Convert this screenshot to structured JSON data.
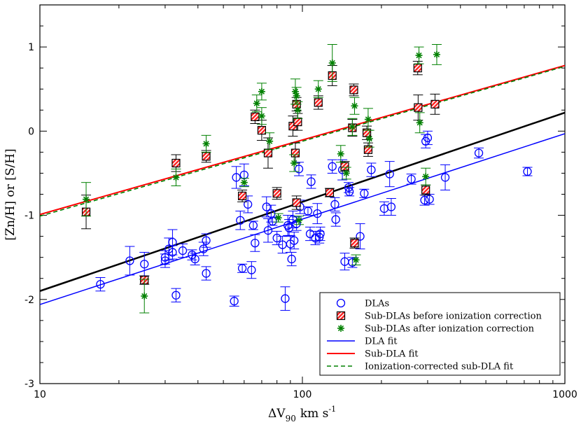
{
  "chart_data": {
    "type": "scatter",
    "title": "",
    "xlabel_main": "ΔV",
    "xlabel_sub": "90",
    "xlabel_unit": "km s",
    "xlabel_sup": "-1",
    "ylabel": "[Zn/H] or [S/H]",
    "xscale": "log",
    "xlim": [
      10,
      1000
    ],
    "ylim": [
      -3,
      1.5
    ],
    "x_ticks": [
      10,
      100,
      1000
    ],
    "x_tick_labels": [
      "10",
      "100",
      "1000"
    ],
    "y_ticks": [
      -3,
      -2,
      -1,
      0,
      1
    ],
    "y_tick_labels": [
      "-3",
      "-2",
      "-1",
      "0",
      "1"
    ],
    "legend_position": "bottom-right",
    "colors": {
      "dla": "#0000ff",
      "subdla_before_fill": "#ff2020",
      "subdla_before_stripe": "#ffffff",
      "subdla_before_err": "#000000",
      "subdla_after": "#008000",
      "dla_fit": "#0000ff",
      "subdla_fit": "#ff0000",
      "ion_fit": "#008000",
      "overall_fit": "#000000"
    },
    "legend": [
      {
        "key": "dla",
        "label": "DLAs"
      },
      {
        "key": "before",
        "label": "Sub-DLAs before ionization correction"
      },
      {
        "key": "after",
        "label": "Sub-DLAs after ionization correction"
      },
      {
        "key": "dla_fit",
        "label": "DLA fit"
      },
      {
        "key": "subdla_fit",
        "label": "Sub-DLA fit"
      },
      {
        "key": "ion_fit",
        "label": "Ionization-corrected sub-DLA fit"
      }
    ],
    "fits": {
      "dla_fit": {
        "x": [
          10,
          1000
        ],
        "y": [
          -2.06,
          -0.03
        ]
      },
      "subdla_fit": {
        "x": [
          10,
          1000
        ],
        "y": [
          -0.99,
          0.78
        ]
      },
      "ion_fit": {
        "x": [
          10,
          1000
        ],
        "y": [
          -1.01,
          0.77
        ]
      },
      "overall_fit": {
        "x": [
          10,
          1000
        ],
        "y": [
          -1.9,
          0.22
        ]
      }
    },
    "series": [
      {
        "name": "DLAs",
        "points": [
          {
            "x": 17,
            "y": -1.82,
            "e": 0.08
          },
          {
            "x": 22,
            "y": -1.54,
            "e": 0.17
          },
          {
            "x": 25,
            "y": -1.58,
            "e": 0.14
          },
          {
            "x": 30,
            "y": -1.5,
            "e": 0.08
          },
          {
            "x": 30,
            "y": -1.54,
            "e": 0.08
          },
          {
            "x": 31,
            "y": -1.4,
            "e": 0.13
          },
          {
            "x": 32,
            "y": -1.32,
            "e": 0.15
          },
          {
            "x": 32,
            "y": -1.44,
            "e": 0.08
          },
          {
            "x": 33,
            "y": -1.95,
            "e": 0.08
          },
          {
            "x": 35,
            "y": -1.42,
            "e": 0.08
          },
          {
            "x": 38,
            "y": -1.47,
            "e": 0.06
          },
          {
            "x": 39,
            "y": -1.52,
            "e": 0.07
          },
          {
            "x": 42,
            "y": -1.4,
            "e": 0.08
          },
          {
            "x": 43,
            "y": -1.3,
            "e": 0.08
          },
          {
            "x": 43,
            "y": -1.69,
            "e": 0.08
          },
          {
            "x": 55,
            "y": -2.02,
            "e": 0.06
          },
          {
            "x": 56,
            "y": -0.55,
            "e": 0.13
          },
          {
            "x": 58,
            "y": -1.06,
            "e": 0.11
          },
          {
            "x": 59,
            "y": -1.63,
            "e": 0.05
          },
          {
            "x": 60,
            "y": -0.52,
            "e": 0.13
          },
          {
            "x": 62,
            "y": -0.87,
            "e": 0.1
          },
          {
            "x": 64,
            "y": -1.65,
            "e": 0.1
          },
          {
            "x": 65,
            "y": -1.12,
            "e": 0.05
          },
          {
            "x": 66,
            "y": -1.33,
            "e": 0.1
          },
          {
            "x": 73,
            "y": -0.9,
            "e": 0.12
          },
          {
            "x": 74,
            "y": -1.18,
            "e": 0.14
          },
          {
            "x": 76,
            "y": -0.98,
            "e": 0.1
          },
          {
            "x": 77,
            "y": -1.07,
            "e": 0.05
          },
          {
            "x": 80,
            "y": -1.27,
            "e": 0.08
          },
          {
            "x": 84,
            "y": -1.35,
            "e": 0.1
          },
          {
            "x": 86,
            "y": -1.99,
            "e": 0.14
          },
          {
            "x": 88,
            "y": -1.12,
            "e": 0.12
          },
          {
            "x": 89,
            "y": -1.15,
            "e": 0.1
          },
          {
            "x": 90,
            "y": -1.34,
            "e": 0.1
          },
          {
            "x": 91,
            "y": -1.52,
            "e": 0.08
          },
          {
            "x": 92,
            "y": -1.05,
            "e": 0.1
          },
          {
            "x": 93,
            "y": -1.3,
            "e": 0.1
          },
          {
            "x": 95,
            "y": -1.1,
            "e": 0.08
          },
          {
            "x": 97,
            "y": -0.45,
            "e": 0.08
          },
          {
            "x": 98,
            "y": -0.9,
            "e": 0.08
          },
          {
            "x": 105,
            "y": -0.95,
            "e": 0.05
          },
          {
            "x": 107,
            "y": -1.22,
            "e": 0.08
          },
          {
            "x": 108,
            "y": -0.6,
            "e": 0.08
          },
          {
            "x": 112,
            "y": -1.27,
            "e": 0.08
          },
          {
            "x": 114,
            "y": -0.98,
            "e": 0.12
          },
          {
            "x": 116,
            "y": -1.26,
            "e": 0.07
          },
          {
            "x": 117,
            "y": -1.22,
            "e": 0.08
          },
          {
            "x": 130,
            "y": -0.42,
            "e": 0.08
          },
          {
            "x": 133,
            "y": -0.87,
            "e": 0.08
          },
          {
            "x": 134,
            "y": -1.05,
            "e": 0.08
          },
          {
            "x": 142,
            "y": -0.46,
            "e": 0.12
          },
          {
            "x": 145,
            "y": -1.55,
            "e": 0.1
          },
          {
            "x": 150,
            "y": -0.67,
            "e": 0.06
          },
          {
            "x": 151,
            "y": -0.72,
            "e": 0.05
          },
          {
            "x": 155,
            "y": -1.56,
            "e": 0.06
          },
          {
            "x": 166,
            "y": -1.25,
            "e": 0.15
          },
          {
            "x": 172,
            "y": -0.74,
            "e": 0.05
          },
          {
            "x": 183,
            "y": -0.46,
            "e": 0.08
          },
          {
            "x": 205,
            "y": -0.92,
            "e": 0.08
          },
          {
            "x": 215,
            "y": -0.51,
            "e": 0.15
          },
          {
            "x": 218,
            "y": -0.9,
            "e": 0.1
          },
          {
            "x": 260,
            "y": -0.57,
            "e": 0.06
          },
          {
            "x": 292,
            "y": -0.82,
            "e": 0.06
          },
          {
            "x": 295,
            "y": -0.12,
            "e": 0.08
          },
          {
            "x": 300,
            "y": -0.08,
            "e": 0.08
          },
          {
            "x": 305,
            "y": -0.81,
            "e": 0.06
          },
          {
            "x": 350,
            "y": -0.55,
            "e": 0.15
          },
          {
            "x": 470,
            "y": -0.26,
            "e": 0.06
          },
          {
            "x": 720,
            "y": -0.48,
            "e": 0.05
          }
        ]
      },
      {
        "name": "Sub-DLAs before ionization correction",
        "points": [
          {
            "x": 15,
            "y": -0.96,
            "e": 0.2
          },
          {
            "x": 25,
            "y": -1.77,
            "e": 0.05
          },
          {
            "x": 33,
            "y": -0.38,
            "e": 0.1
          },
          {
            "x": 43,
            "y": -0.3,
            "e": 0.07
          },
          {
            "x": 59,
            "y": -0.77,
            "e": 0.07
          },
          {
            "x": 66,
            "y": 0.17,
            "e": 0.08
          },
          {
            "x": 70,
            "y": 0.01,
            "e": 0.12
          },
          {
            "x": 74,
            "y": -0.26,
            "e": 0.18
          },
          {
            "x": 80,
            "y": -0.74,
            "e": 0.07
          },
          {
            "x": 92,
            "y": 0.06,
            "e": 0.12
          },
          {
            "x": 94,
            "y": -0.26,
            "e": 0.12
          },
          {
            "x": 95,
            "y": -0.85,
            "e": 0.08
          },
          {
            "x": 95,
            "y": 0.32,
            "e": 0.08
          },
          {
            "x": 96,
            "y": 0.11,
            "e": 0.1
          },
          {
            "x": 115,
            "y": 0.34,
            "e": 0.08
          },
          {
            "x": 127,
            "y": -0.73,
            "e": 0.05
          },
          {
            "x": 130,
            "y": 0.66,
            "e": 0.12
          },
          {
            "x": 145,
            "y": -0.42,
            "e": 0.06
          },
          {
            "x": 155,
            "y": 0.04,
            "e": 0.1
          },
          {
            "x": 157,
            "y": 0.49,
            "e": 0.07
          },
          {
            "x": 158,
            "y": -1.33,
            "e": 0.06
          },
          {
            "x": 176,
            "y": -0.02,
            "e": 0.08
          },
          {
            "x": 178,
            "y": -0.22,
            "e": 0.08
          },
          {
            "x": 275,
            "y": 0.75,
            "e": 0.08
          },
          {
            "x": 276,
            "y": 0.28,
            "e": 0.15
          },
          {
            "x": 295,
            "y": -0.7,
            "e": 0.06
          },
          {
            "x": 320,
            "y": 0.32,
            "e": 0.12
          }
        ]
      },
      {
        "name": "Sub-DLAs after ionization correction",
        "points": [
          {
            "x": 15,
            "y": -0.81,
            "e": 0.2
          },
          {
            "x": 25,
            "y": -1.96,
            "e": 0.2
          },
          {
            "x": 33,
            "y": -0.55,
            "e": 0.1
          },
          {
            "x": 43,
            "y": -0.15,
            "e": 0.1
          },
          {
            "x": 60,
            "y": -0.61,
            "e": 0.05
          },
          {
            "x": 67,
            "y": 0.33,
            "e": 0.1
          },
          {
            "x": 70,
            "y": 0.47,
            "e": 0.1
          },
          {
            "x": 70,
            "y": 0.18,
            "e": 0.1
          },
          {
            "x": 75,
            "y": -0.12,
            "e": 0.1
          },
          {
            "x": 81,
            "y": -1.03,
            "e": 0.05
          },
          {
            "x": 93,
            "y": -0.38,
            "e": 0.1
          },
          {
            "x": 94,
            "y": 0.47,
            "e": 0.15
          },
          {
            "x": 95,
            "y": 0.42,
            "e": 0.1
          },
          {
            "x": 96,
            "y": 0.25,
            "e": 0.1
          },
          {
            "x": 97,
            "y": -1.06,
            "e": 0.05
          },
          {
            "x": 115,
            "y": 0.5,
            "e": 0.1
          },
          {
            "x": 130,
            "y": 0.81,
            "e": 0.22
          },
          {
            "x": 140,
            "y": -0.27,
            "e": 0.1
          },
          {
            "x": 147,
            "y": -0.5,
            "e": 0.07
          },
          {
            "x": 155,
            "y": 0.05,
            "e": 0.1
          },
          {
            "x": 158,
            "y": 0.3,
            "e": 0.1
          },
          {
            "x": 160,
            "y": -1.53,
            "e": 0.06
          },
          {
            "x": 178,
            "y": 0.14,
            "e": 0.13
          },
          {
            "x": 180,
            "y": -0.09,
            "e": 0.1
          },
          {
            "x": 278,
            "y": 0.9,
            "e": 0.1
          },
          {
            "x": 280,
            "y": 0.1,
            "e": 0.12
          },
          {
            "x": 295,
            "y": -0.54,
            "e": 0.1
          },
          {
            "x": 325,
            "y": 0.91,
            "e": 0.12
          }
        ]
      }
    ]
  }
}
